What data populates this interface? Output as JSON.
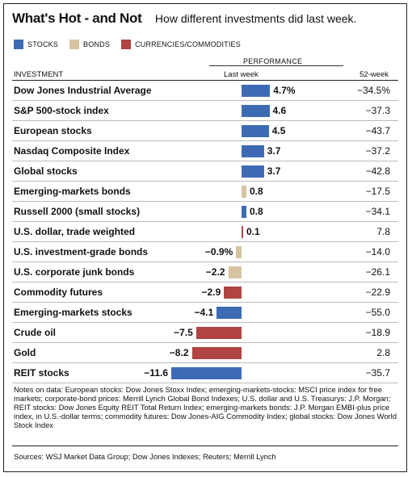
{
  "header": {
    "title": "What's Hot - and Not",
    "subtitle": "How different investments did last week."
  },
  "legend": [
    {
      "label": "STOCKS",
      "color": "#3d6bb3"
    },
    {
      "label": "BONDS",
      "color": "#d6c4a0"
    },
    {
      "label": "CURRENCIES/COMMODITIES",
      "color": "#b04343"
    }
  ],
  "columns": {
    "performance": "PERFORMANCE",
    "investment": "INVESTMENT",
    "last_week": "Last week",
    "week52": "52-week"
  },
  "colors": {
    "stocks": "#3d6bb3",
    "bonds": "#d6c4a0",
    "commodities": "#b04343"
  },
  "chart_data": {
    "type": "bar",
    "orientation": "horizontal",
    "title": "What's Hot - and Not",
    "subtitle": "How different investments did last week.",
    "xlim": [
      -12,
      5
    ],
    "categories": [
      "Dow Jones Industrial Average",
      "S&P 500-stock index",
      "European stocks",
      "Nasdaq Composite Index",
      "Global stocks",
      "Emerging-markets bonds",
      "Russell 2000 (small stocks)",
      "U.S. dollar, trade weighted",
      "U.S. investment-grade bonds",
      "U.S. corporate junk bonds",
      "Commodity futures",
      "Emerging-markets stocks",
      "Crude oil",
      "Gold",
      "REIT stocks"
    ],
    "values": [
      4.7,
      4.6,
      4.5,
      3.7,
      3.7,
      0.8,
      0.8,
      0.1,
      -0.9,
      -2.2,
      -2.9,
      -4.1,
      -7.5,
      -8.2,
      -11.6
    ],
    "value_labels": [
      "4.7%",
      "4.6",
      "4.5",
      "3.7",
      "3.7",
      "0.8",
      "0.8",
      "0.1",
      "−0.9%",
      "−2.2",
      "−2.9",
      "−4.1",
      "−7.5",
      "−8.2",
      "−11.6"
    ],
    "groups": [
      "stocks",
      "stocks",
      "stocks",
      "stocks",
      "stocks",
      "bonds",
      "stocks",
      "commodities",
      "bonds",
      "bonds",
      "commodities",
      "stocks",
      "commodities",
      "commodities",
      "stocks"
    ],
    "week52_labels": [
      "−34.5%",
      "−37.3",
      "−43.7",
      "−37.2",
      "−42.8",
      "−17.5",
      "−34.1",
      "7.8",
      "−14.0",
      "−26.1",
      "−22.9",
      "−55.0",
      "−18.9",
      "2.8",
      "−35.7"
    ]
  },
  "notes": "Notes on data: European stocks: Dow Jones Stoxx Index; emerging-markets-stocks: MSCI price index for free markets; corporate-bond prices: Merrill Lynch Global Bond Indexes; U.S. dollar and U.S. Treasurys: J.P. Morgan; REIT stocks: Dow Jones Equity REIT Total Return Index; emerging-markets bonds: J.P. Morgan EMBI-plus price index, in U.S.-dollar terms; commodity futures: Dow Jones-AIG Commodity Index; global stocks: Dow Jones World Stock Index",
  "sources": "Sources: WSJ Market Data Group; Dow Jones Indexes; Reuters; Merrill Lynch"
}
